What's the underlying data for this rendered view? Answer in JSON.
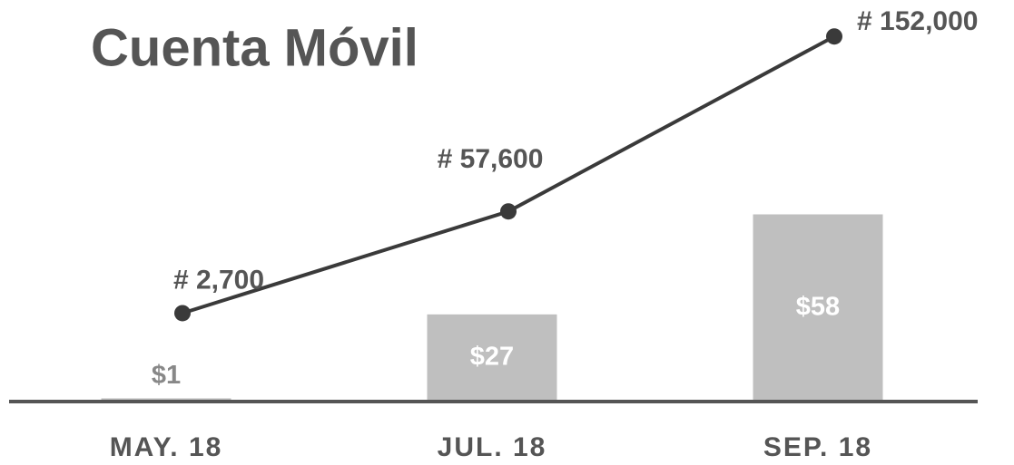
{
  "chart_data": {
    "type": "bar-line",
    "title": "Cuenta Móvil",
    "categories": [
      "MAY. 18",
      "JUL. 18",
      "SEP. 18"
    ],
    "series": [
      {
        "type": "bar",
        "color": "#bfbfbf",
        "values": [
          1,
          27,
          58
        ],
        "value_labels": [
          "$1",
          "$27",
          "$58"
        ]
      },
      {
        "type": "line",
        "axis": "y2",
        "color": "#3a3a3a",
        "values": [
          2700,
          57600,
          152000
        ],
        "value_labels": [
          "# 2,700",
          "# 57,600",
          "# 152,000"
        ]
      }
    ],
    "ylim": [
      0,
      116
    ],
    "y2lim": [
      -45000,
      157000
    ]
  }
}
